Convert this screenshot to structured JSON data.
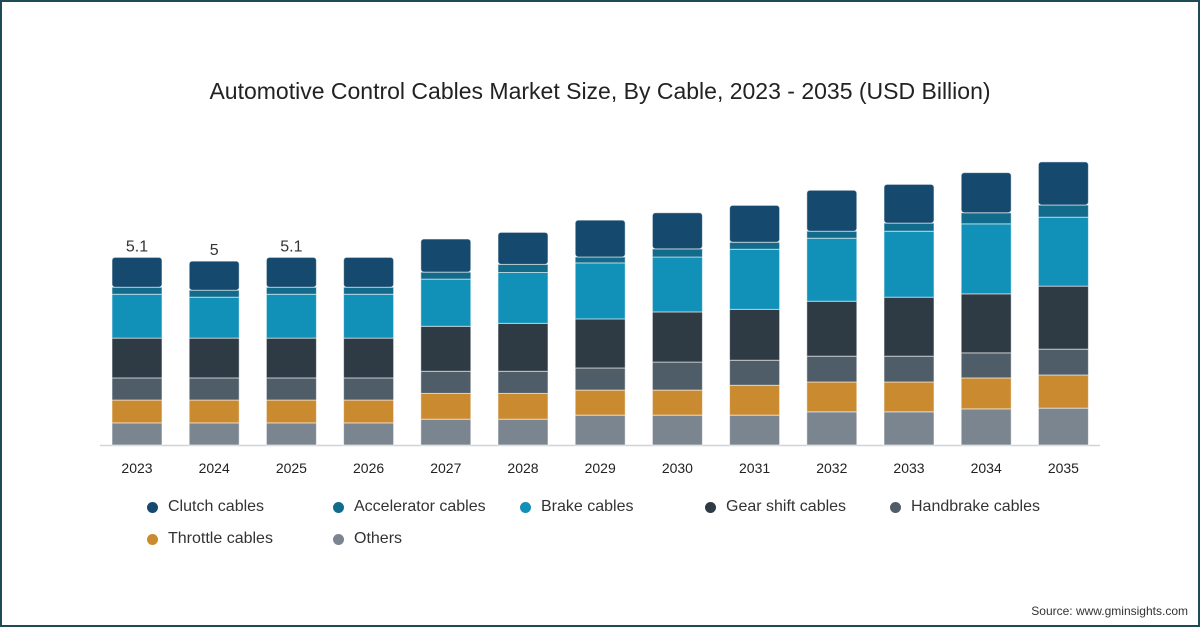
{
  "chart_data": {
    "type": "bar",
    "stacked": true,
    "title": "Automotive Control Cables Market Size, By Cable, 2023 - 2035 (USD Billion)",
    "xlabel": "",
    "ylabel": "",
    "ylim": [
      0,
      8
    ],
    "categories": [
      "2023",
      "2024",
      "2025",
      "2026",
      "2027",
      "2028",
      "2029",
      "2030",
      "2031",
      "2032",
      "2033",
      "2034",
      "2035"
    ],
    "series": [
      {
        "name": "Others",
        "color": "#7b8590",
        "values": [
          0.6,
          0.6,
          0.6,
          0.6,
          0.7,
          0.7,
          0.81,
          0.81,
          0.81,
          0.9,
          0.9,
          0.98,
          1.0
        ]
      },
      {
        "name": "Throttle cables",
        "color": "#c98a30",
        "values": [
          0.62,
          0.62,
          0.62,
          0.62,
          0.7,
          0.7,
          0.68,
          0.68,
          0.81,
          0.81,
          0.81,
          0.84,
          0.9
        ]
      },
      {
        "name": "Handbrake cables",
        "color": "#4f5d69",
        "values": [
          0.6,
          0.6,
          0.6,
          0.6,
          0.6,
          0.6,
          0.6,
          0.76,
          0.68,
          0.7,
          0.7,
          0.68,
          0.7
        ]
      },
      {
        "name": "Gear shift cables",
        "color": "#2e3a44",
        "values": [
          1.08,
          1.08,
          1.08,
          1.08,
          1.22,
          1.3,
          1.33,
          1.36,
          1.38,
          1.49,
          1.6,
          1.6,
          1.71
        ]
      },
      {
        "name": "Brake cables",
        "color": "#1190b8",
        "values": [
          1.19,
          1.11,
          1.19,
          1.19,
          1.28,
          1.38,
          1.52,
          1.49,
          1.63,
          1.71,
          1.79,
          1.9,
          1.87
        ]
      },
      {
        "name": "Accelerator cables",
        "color": "#136b8c",
        "values": [
          0.19,
          0.19,
          0.19,
          0.19,
          0.19,
          0.22,
          0.16,
          0.22,
          0.19,
          0.19,
          0.22,
          0.3,
          0.33
        ]
      },
      {
        "name": "Clutch cables",
        "color": "#154a6e",
        "values": [
          0.81,
          0.79,
          0.81,
          0.81,
          0.9,
          0.87,
          1.0,
          0.98,
          1.0,
          1.11,
          1.05,
          1.09,
          1.17
        ]
      }
    ],
    "data_labels": [
      {
        "category": "2023",
        "text": "5.1"
      },
      {
        "category": "2024",
        "text": "5"
      },
      {
        "category": "2025",
        "text": "5.1"
      }
    ],
    "legend_order": [
      "Clutch cables",
      "Accelerator cables",
      "Brake cables",
      "Gear shift cables",
      "Handbrake cables",
      "Throttle cables",
      "Others"
    ],
    "legend_position": "bottom",
    "grid": false
  },
  "source": "Source: www.gminsights.com"
}
